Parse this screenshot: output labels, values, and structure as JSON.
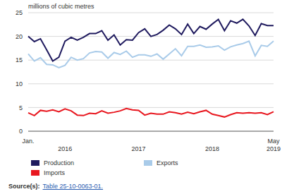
{
  "chart_data": {
    "type": "line",
    "y_label": "millions of cubic metres",
    "categories": [
      "Jan.",
      null,
      null,
      null,
      null,
      null,
      "2016",
      null,
      null,
      null,
      null,
      null,
      null,
      null,
      null,
      null,
      null,
      null,
      "2017",
      null,
      null,
      null,
      null,
      null,
      null,
      null,
      null,
      null,
      null,
      null,
      "2018",
      null,
      null,
      null,
      null,
      null,
      null,
      null,
      null,
      null,
      "May\n2019"
    ],
    "series": [
      {
        "name": "Production",
        "color": "#1f1a5e",
        "values": [
          20.0,
          18.9,
          19.5,
          17.2,
          14.8,
          15.6,
          19.0,
          19.8,
          19.2,
          19.8,
          20.6,
          20.6,
          21.2,
          19.2,
          20.3,
          18.2,
          19.3,
          19.2,
          20.8,
          21.6,
          20.0,
          20.4,
          21.3,
          22.4,
          21.6,
          20.4,
          22.6,
          20.6,
          22.1,
          21.5,
          22.6,
          23.6,
          21.2,
          23.3,
          22.8,
          23.6,
          22.2,
          20.2,
          22.7,
          22.3,
          22.3
        ]
      },
      {
        "name": "Exports",
        "color": "#a9cbe9",
        "values": [
          16.3,
          14.8,
          15.5,
          14.1,
          14.0,
          13.4,
          13.9,
          15.6,
          15.0,
          15.3,
          16.5,
          16.8,
          16.7,
          15.4,
          16.6,
          16.2,
          16.9,
          15.6,
          16.1,
          16.1,
          15.8,
          16.3,
          15.2,
          16.3,
          17.4,
          15.9,
          17.9,
          17.9,
          18.2,
          17.7,
          17.8,
          18.0,
          17.1,
          17.8,
          18.2,
          18.5,
          19.0,
          15.9,
          18.1,
          17.9,
          19.0
        ]
      },
      {
        "name": "Imports",
        "color": "#e8171f",
        "values": [
          3.9,
          3.3,
          4.4,
          4.2,
          4.5,
          4.1,
          4.7,
          4.3,
          3.4,
          3.3,
          3.8,
          3.7,
          4.3,
          3.8,
          4.0,
          4.3,
          4.8,
          4.5,
          4.4,
          3.4,
          3.8,
          3.6,
          3.6,
          4.1,
          3.9,
          3.6,
          4.0,
          3.7,
          4.1,
          4.4,
          3.6,
          3.3,
          3.0,
          3.5,
          3.9,
          3.8,
          3.9,
          3.8,
          3.9,
          3.5,
          4.1
        ]
      }
    ],
    "ylim": [
      0,
      25
    ],
    "yticks": [
      0,
      5,
      10,
      15,
      20,
      25
    ],
    "grid": true,
    "legend": "bottom",
    "annotations": [
      "Source(s):",
      "Table 25-10-0063-01."
    ]
  }
}
